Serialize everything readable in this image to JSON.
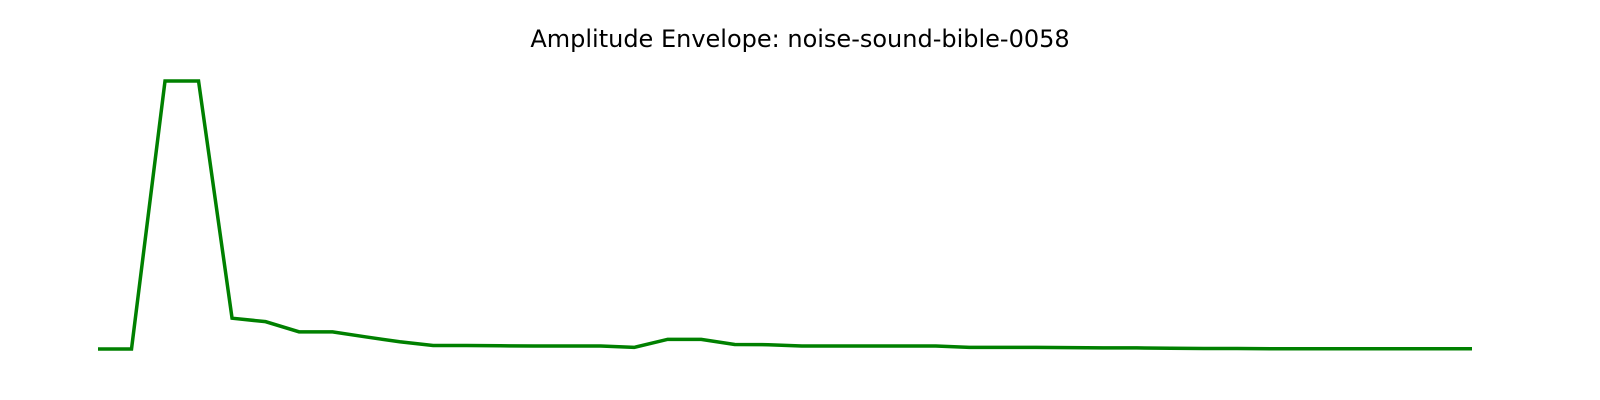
{
  "chart_data": {
    "type": "line",
    "title": "Amplitude Envelope: noise-sound-bible-0058",
    "xlabel": "",
    "ylabel": "",
    "axes_visible": false,
    "grid": false,
    "legend": "none",
    "line_color": "#008000",
    "x": [
      0,
      1,
      2,
      3,
      4,
      5,
      6,
      7,
      8,
      9,
      10,
      11,
      12,
      13,
      14,
      15,
      16,
      17,
      18,
      19,
      20,
      21,
      22,
      23,
      24,
      25,
      26,
      27,
      28,
      29,
      30,
      31,
      32,
      33,
      34,
      35,
      36,
      37,
      38,
      39,
      40,
      41
    ],
    "series": [
      {
        "values": [
          0.0,
          0.0,
          1.0,
          1.0,
          0.115,
          0.102,
          0.064,
          0.064,
          0.045,
          0.027,
          0.013,
          0.013,
          0.012,
          0.011,
          0.011,
          0.011,
          0.006,
          0.036,
          0.036,
          0.017,
          0.016,
          0.011,
          0.011,
          0.011,
          0.011,
          0.011,
          0.006,
          0.006,
          0.006,
          0.005,
          0.004,
          0.004,
          0.003,
          0.002,
          0.002,
          0.001,
          0.001,
          0.001,
          0.001,
          0.001,
          0.001,
          0.001
        ]
      }
    ],
    "xlim": [
      0,
      41
    ],
    "ylim": [
      0,
      1
    ]
  }
}
